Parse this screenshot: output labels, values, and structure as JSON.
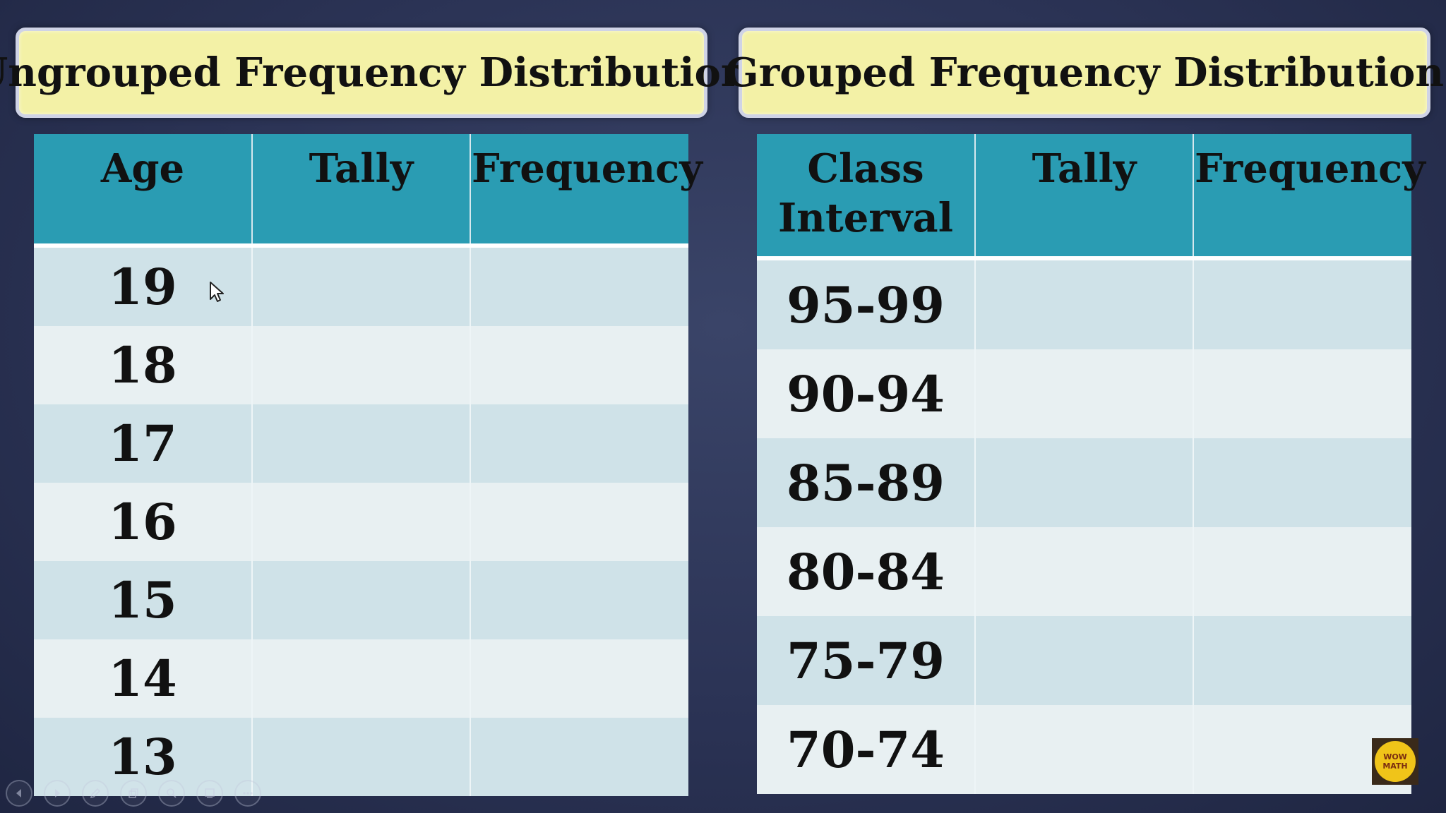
{
  "ungrouped": {
    "title": "Ungrouped Frequency Distribution",
    "headers": [
      "Age",
      "Tally",
      "Frequency"
    ],
    "rows": [
      {
        "value": "19",
        "tally": "",
        "frequency": ""
      },
      {
        "value": "18",
        "tally": "",
        "frequency": ""
      },
      {
        "value": "17",
        "tally": "",
        "frequency": ""
      },
      {
        "value": "16",
        "tally": "",
        "frequency": ""
      },
      {
        "value": "15",
        "tally": "",
        "frequency": ""
      },
      {
        "value": "14",
        "tally": "",
        "frequency": ""
      },
      {
        "value": "13",
        "tally": "",
        "frequency": ""
      }
    ]
  },
  "grouped": {
    "title": "Grouped Frequency Distribution",
    "headers": [
      "Class\nInterval",
      "Tally",
      "Frequency"
    ],
    "rows": [
      {
        "value": "95-99",
        "tally": "",
        "frequency": ""
      },
      {
        "value": "90-94",
        "tally": "",
        "frequency": ""
      },
      {
        "value": "85-89",
        "tally": "",
        "frequency": ""
      },
      {
        "value": "80-84",
        "tally": "",
        "frequency": ""
      },
      {
        "value": "75-79",
        "tally": "",
        "frequency": ""
      },
      {
        "value": "70-74",
        "tally": "",
        "frequency": ""
      }
    ]
  },
  "toolbar": {
    "icons": [
      "previous-icon",
      "next-icon",
      "pen-icon",
      "copy-icon",
      "zoom-icon",
      "slides-icon",
      "more-icon"
    ]
  },
  "logo": {
    "line1": "WOW",
    "line2": "MATH"
  },
  "colors": {
    "background": "#2b3355",
    "banner": "#f3f1a6",
    "header": "#2a9cb3",
    "row_dark": "#cfe2e8",
    "row_light": "#e8f0f2"
  }
}
